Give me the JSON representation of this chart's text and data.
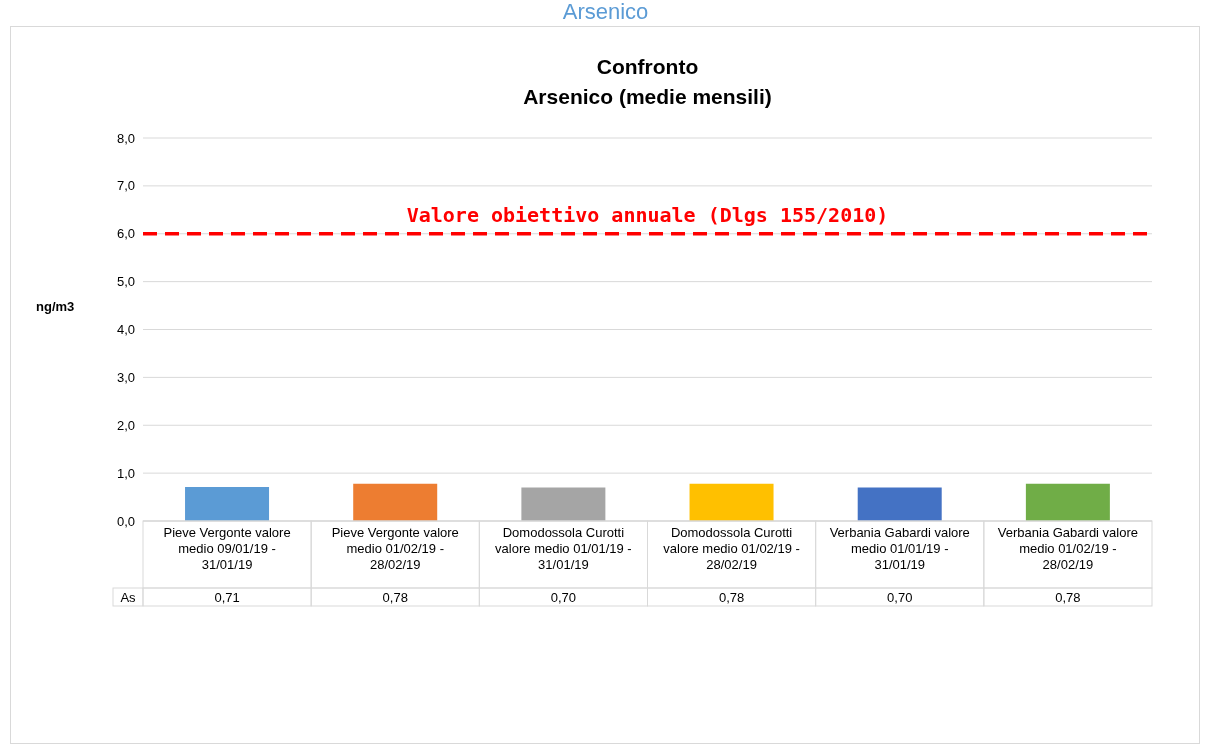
{
  "chart_data": {
    "type": "bar",
    "title": "Confronto\nArsenico (medie mensili)",
    "ylabel": "ng/m3",
    "annotations": [
      "Arsenico",
      "As"
    ],
    "categories": [
      "Pieve Vergonte valore medio 09/01/19 - 31/01/19",
      "Pieve Vergonte valore medio 01/02/19 - 28/02/19",
      "Domodossola Curotti valore medio 01/01/19 - 31/01/19",
      "Domodossola Curotti valore medio 01/02/19 - 28/02/19",
      "Verbania Gabardi valore medio 01/01/19 - 31/01/19",
      "Verbania Gabardi valore medio 01/02/19 - 28/02/19"
    ],
    "series": [
      {
        "colors": [
          "#5b9bd5",
          "#ed7d31",
          "#a5a5a5",
          "#ffc000",
          "#4472c4",
          "#70ad47"
        ],
        "values": [
          0.71,
          0.78,
          0.7,
          0.78,
          0.7,
          0.78
        ],
        "value_labels": [
          "0,71",
          "0,78",
          "0,70",
          "0,78",
          "0,70",
          "0,78"
        ]
      }
    ],
    "ylim": [
      0,
      8
    ],
    "yticks": [
      {
        "value": 0,
        "label": "0,0"
      },
      {
        "value": 1,
        "label": "1,0"
      },
      {
        "value": 2,
        "label": "2,0"
      },
      {
        "value": 3,
        "label": "3,0"
      },
      {
        "value": 4,
        "label": "4,0"
      },
      {
        "value": 5,
        "label": "5,0"
      },
      {
        "value": 6,
        "label": "6,0"
      },
      {
        "value": 7,
        "label": "7,0"
      },
      {
        "value": 8,
        "label": "8,0"
      }
    ],
    "grid": "y",
    "legend": false,
    "ref_lines": [
      {
        "axis": "y",
        "value": 6,
        "label": "Valore obiettivo annuale (Dlgs 155/2010)",
        "color": "#ff0000",
        "line_style": "dashed"
      }
    ]
  }
}
